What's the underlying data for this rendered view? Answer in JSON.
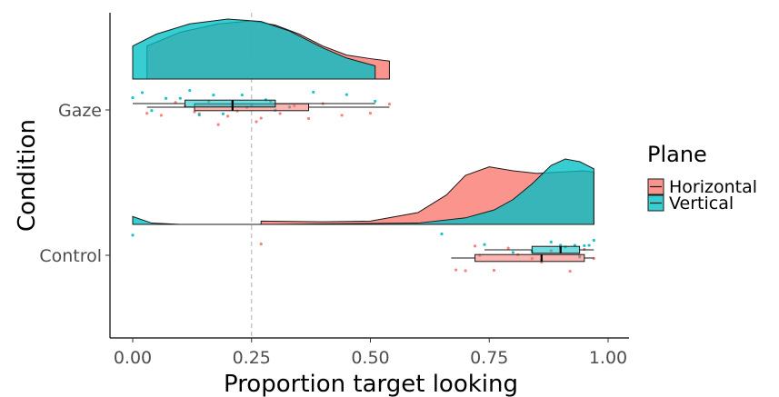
{
  "chart_data": {
    "type": "raincloud",
    "xlabel": "Proportion target looking",
    "ylabel": "Condition",
    "xlim": [
      -0.05,
      1.03
    ],
    "x_ticks": [
      0.0,
      0.25,
      0.5,
      0.75,
      1.0
    ],
    "x_tick_labels": [
      "0.00",
      "0.25",
      "0.50",
      "0.75",
      "1.00"
    ],
    "categories": [
      "Gaze",
      "Control"
    ],
    "reference_line": {
      "x": 0.25,
      "style": "dashed",
      "color": "#bdbdbd"
    },
    "grid": false,
    "legend": {
      "title": "Plane",
      "position": "right",
      "entries": [
        "Horizontal",
        "Vertical"
      ]
    },
    "series": [
      {
        "name": "Horizontal",
        "color": "#F8766D",
        "groups": [
          {
            "category": "Gaze",
            "density": {
              "range": [
                0.03,
                0.54
              ],
              "points": [
                [
                  0.03,
                  0.55
                ],
                [
                  0.1,
                  0.78
                ],
                [
                  0.18,
                  0.92
                ],
                [
                  0.25,
                  0.97
                ],
                [
                  0.3,
                  0.9
                ],
                [
                  0.35,
                  0.75
                ],
                [
                  0.4,
                  0.55
                ],
                [
                  0.45,
                  0.4
                ],
                [
                  0.5,
                  0.34
                ],
                [
                  0.54,
                  0.3
                ]
              ]
            },
            "box": {
              "min": 0.03,
              "q1": 0.13,
              "median": 0.21,
              "q3": 0.37,
              "max": 0.54
            },
            "points": [
              0.03,
              0.06,
              0.09,
              0.11,
              0.13,
              0.14,
              0.16,
              0.18,
              0.2,
              0.22,
              0.24,
              0.26,
              0.27,
              0.29,
              0.31,
              0.34,
              0.37,
              0.4,
              0.44,
              0.5,
              0.54
            ]
          },
          {
            "category": "Control",
            "density": {
              "range": [
                0.27,
                0.97
              ],
              "points": [
                [
                  0.27,
                  0.05
                ],
                [
                  0.4,
                  0.04
                ],
                [
                  0.5,
                  0.05
                ],
                [
                  0.6,
                  0.18
                ],
                [
                  0.66,
                  0.45
                ],
                [
                  0.7,
                  0.75
                ],
                [
                  0.75,
                  0.88
                ],
                [
                  0.8,
                  0.82
                ],
                [
                  0.85,
                  0.78
                ],
                [
                  0.9,
                  0.8
                ],
                [
                  0.95,
                  0.82
                ],
                [
                  0.97,
                  0.8
                ]
              ]
            },
            "box": {
              "min": 0.67,
              "q1": 0.72,
              "median": 0.86,
              "q3": 0.95,
              "max": 0.97
            },
            "points": [
              0.27,
              0.68,
              0.7,
              0.72,
              0.73,
              0.76,
              0.79,
              0.81,
              0.84,
              0.86,
              0.88,
              0.9,
              0.92,
              0.94,
              0.95,
              0.97
            ]
          }
        ]
      },
      {
        "name": "Vertical",
        "color": "#00BFC4",
        "groups": [
          {
            "category": "Gaze",
            "density": {
              "range": [
                0.0,
                0.51
              ],
              "points": [
                [
                  0.0,
                  0.55
                ],
                [
                  0.05,
                  0.75
                ],
                [
                  0.12,
                  0.92
                ],
                [
                  0.2,
                  1.0
                ],
                [
                  0.27,
                  0.96
                ],
                [
                  0.33,
                  0.8
                ],
                [
                  0.4,
                  0.52
                ],
                [
                  0.45,
                  0.35
                ],
                [
                  0.51,
                  0.22
                ]
              ]
            },
            "box": {
              "min": 0.0,
              "q1": 0.11,
              "median": 0.21,
              "q3": 0.3,
              "max": 0.51
            },
            "points": [
              0.0,
              0.02,
              0.04,
              0.07,
              0.1,
              0.12,
              0.14,
              0.17,
              0.19,
              0.21,
              0.23,
              0.25,
              0.28,
              0.3,
              0.33,
              0.38,
              0.45,
              0.51
            ]
          },
          {
            "category": "Control",
            "density": {
              "range": [
                0.0,
                0.97
              ],
              "points": [
                [
                  0.0,
                  0.12
                ],
                [
                  0.04,
                  0.02
                ],
                [
                  0.1,
                  0.0
                ],
                [
                  0.3,
                  0.0
                ],
                [
                  0.6,
                  0.02
                ],
                [
                  0.7,
                  0.1
                ],
                [
                  0.76,
                  0.22
                ],
                [
                  0.8,
                  0.38
                ],
                [
                  0.84,
                  0.62
                ],
                [
                  0.88,
                  0.9
                ],
                [
                  0.91,
                  1.0
                ],
                [
                  0.94,
                  0.96
                ],
                [
                  0.97,
                  0.85
                ]
              ]
            },
            "box": {
              "min": 0.74,
              "q1": 0.84,
              "median": 0.9,
              "q3": 0.94,
              "max": 0.97
            },
            "points": [
              0.0,
              0.65,
              0.74,
              0.8,
              0.84,
              0.86,
              0.88,
              0.9,
              0.91,
              0.93,
              0.94,
              0.95,
              0.96,
              0.97
            ]
          }
        ]
      }
    ]
  }
}
